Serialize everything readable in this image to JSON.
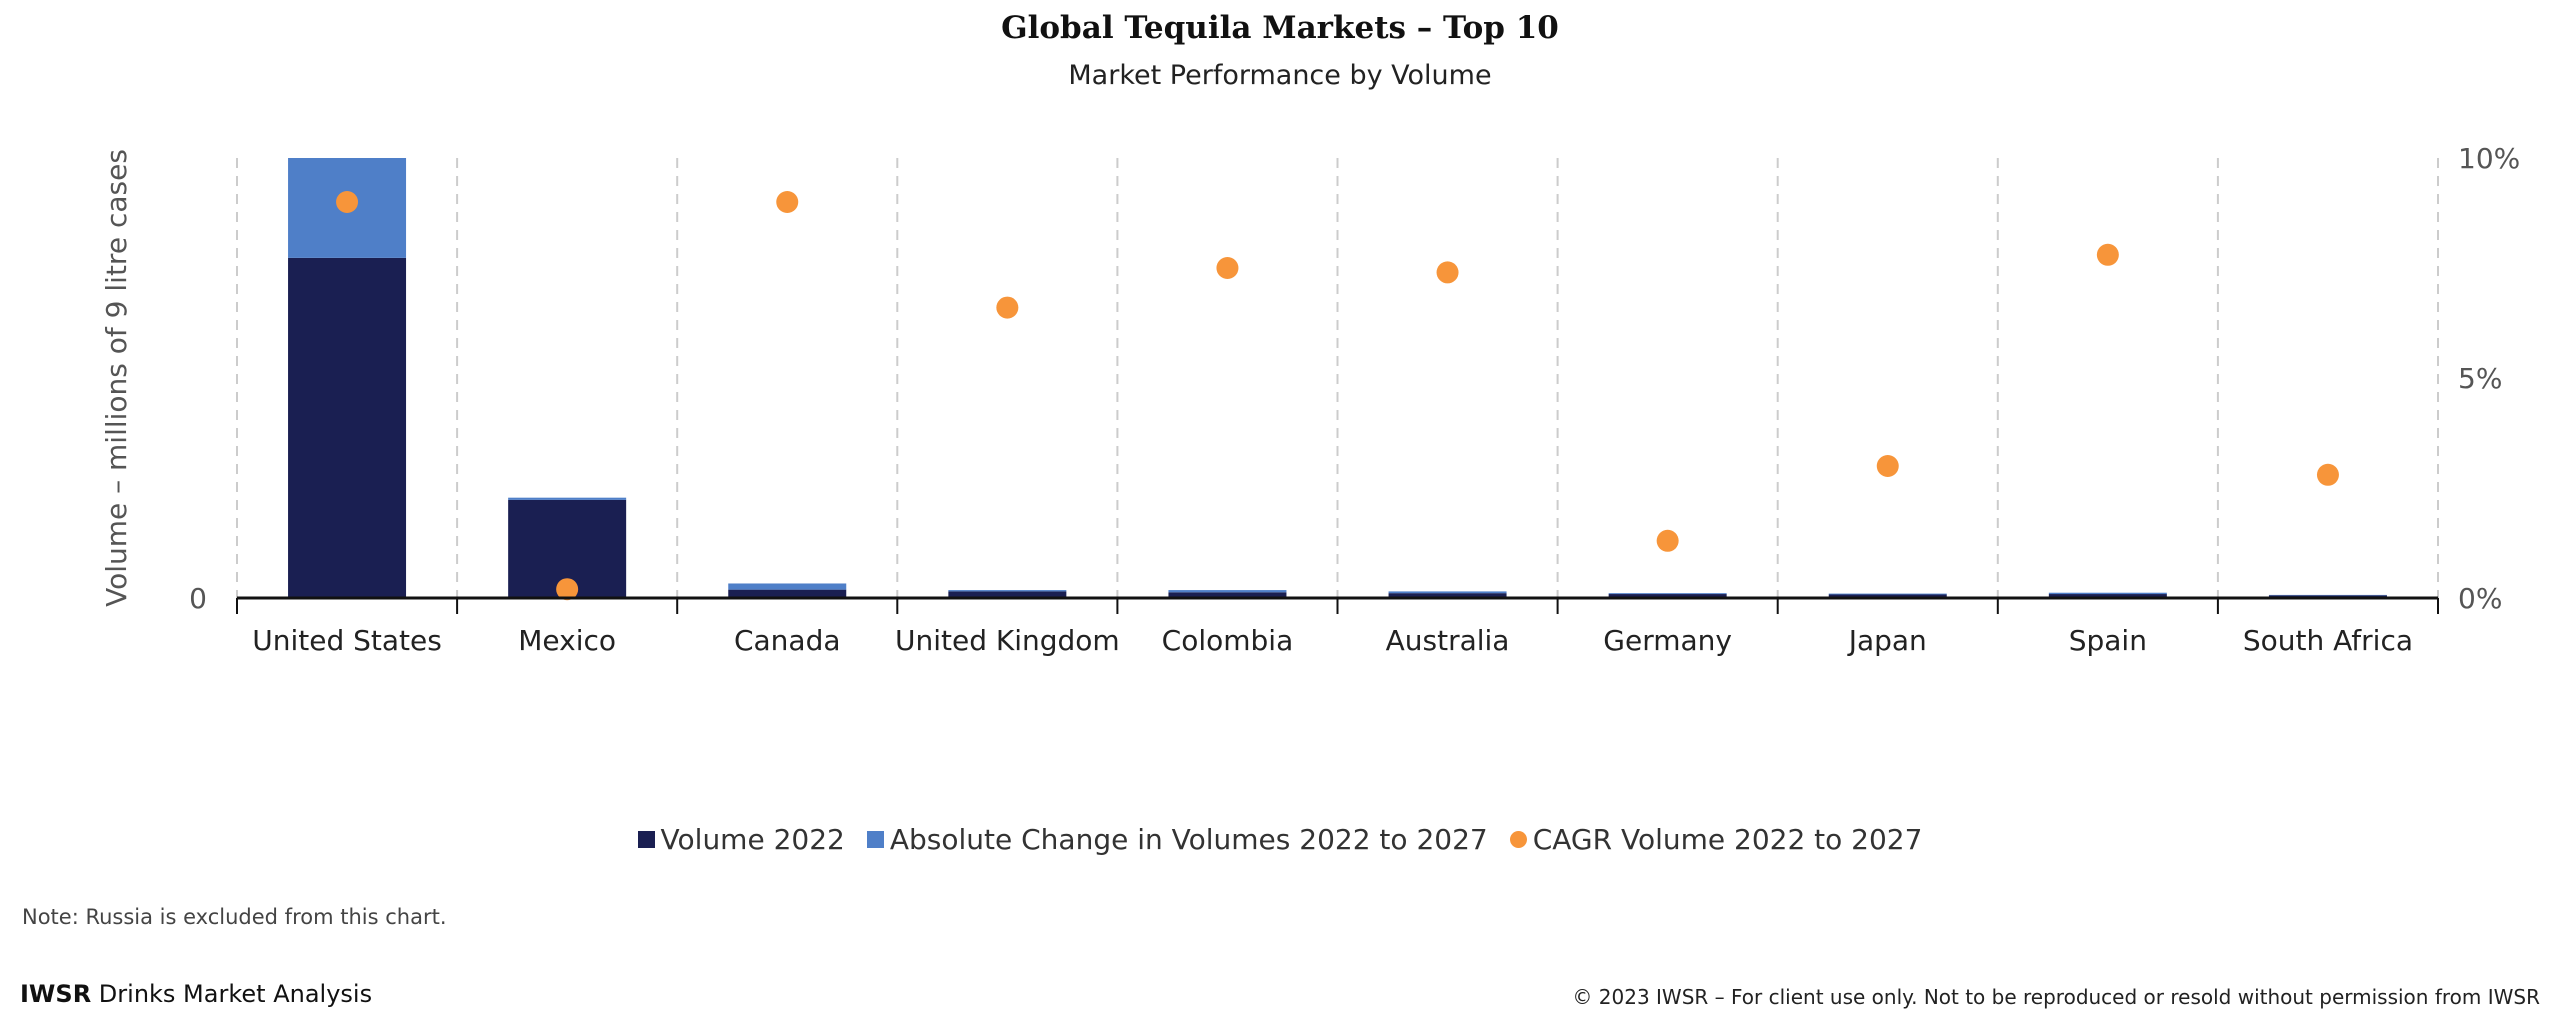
{
  "chart_data": {
    "type": "bar",
    "title": "Global Tequila Markets – Top 10",
    "subtitle": "Market Performance by Volume",
    "ylabel": "Volume – millions of 9 litre cases",
    "y_tick_labels": [
      "0"
    ],
    "y2_tick_labels": [
      "0%",
      "5%",
      "10%"
    ],
    "y2lim": [
      0,
      10
    ],
    "ylim": [
      0,
      100
    ],
    "grid": "vertical dashed",
    "legend_position": "bottom",
    "categories": [
      "United States",
      "Mexico",
      "Canada",
      "United Kingdom",
      "Colombia",
      "Australia",
      "Germany",
      "Japan",
      "Spain",
      "South Africa"
    ],
    "series": [
      {
        "name": "Volume 2022",
        "type": "stacked-bar",
        "color": "#1a1f52",
        "values": [
          77.3,
          22.3,
          1.9,
          1.5,
          1.3,
          1.1,
          0.9,
          0.8,
          0.9,
          0.6
        ]
      },
      {
        "name": "Absolute Change in Volumes 2022 to 2027",
        "type": "stacked-bar",
        "color": "#4f7fc8",
        "values": [
          22.7,
          0.5,
          1.4,
          0.3,
          0.5,
          0.4,
          0.2,
          0.2,
          0.3,
          0.1
        ]
      },
      {
        "name": "CAGR Volume 2022 to 2027",
        "type": "scatter",
        "axis": "right",
        "unit": "%",
        "color": "#f7953a",
        "values": [
          9.0,
          0.2,
          9.0,
          6.6,
          7.5,
          7.4,
          1.3,
          3.0,
          7.8,
          2.8
        ]
      }
    ]
  },
  "note": "Note: Russia is excluded from this chart.",
  "footer": {
    "brand_bold": "IWSR",
    "brand_rest": " Drinks Market Analysis",
    "copyright": "© 2023 IWSR – For client use only. Not to be reproduced or resold without permission from IWSR"
  }
}
